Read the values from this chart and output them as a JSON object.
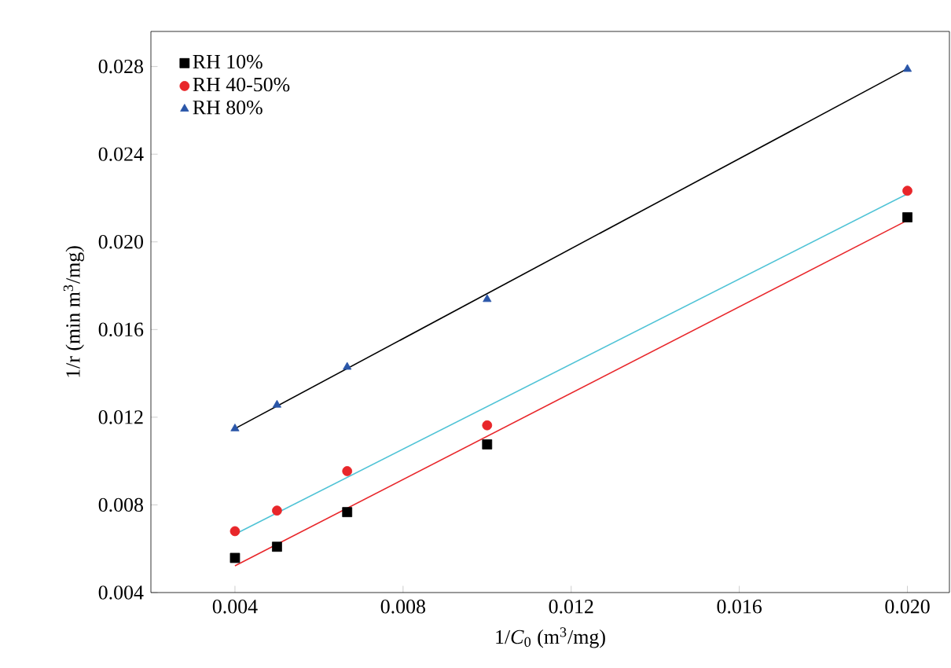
{
  "chart_data": {
    "type": "scatter",
    "xlabel": "1/*C*$_{0}$ (m$^{3}$/mg)",
    "ylabel": "1/r (min m$^{3}$/mg)",
    "xlim": [
      0.002,
      0.021
    ],
    "ylim": [
      0.004,
      0.0296
    ],
    "xticks": [
      {
        "value": 0.004,
        "label": "0.004"
      },
      {
        "value": 0.008,
        "label": "0.008"
      },
      {
        "value": 0.012,
        "label": "0.012"
      },
      {
        "value": 0.016,
        "label": "0.016"
      },
      {
        "value": 0.02,
        "label": "0.020"
      }
    ],
    "yticks": [
      {
        "value": 0.004,
        "label": "0.004"
      },
      {
        "value": 0.008,
        "label": "0.008"
      },
      {
        "value": 0.012,
        "label": "0.012"
      },
      {
        "value": 0.016,
        "label": "0.016"
      },
      {
        "value": 0.02,
        "label": "0.020"
      },
      {
        "value": 0.024,
        "label": "0.024"
      },
      {
        "value": 0.028,
        "label": "0.028"
      }
    ],
    "legend": "top left",
    "grid": false,
    "series": [
      {
        "name": "RH 10%",
        "color": "#000000",
        "marker": "square",
        "x": [
          0.004,
          0.005,
          0.00667,
          0.01,
          0.02
        ],
        "values": [
          0.00558,
          0.00609,
          0.00767,
          0.01076,
          0.02112
        ]
      },
      {
        "name": "RH 40-50%",
        "color": "#e8262a",
        "marker": "circle",
        "x": [
          0.004,
          0.005,
          0.00667,
          0.01,
          0.02
        ],
        "values": [
          0.0068,
          0.00774,
          0.00954,
          0.01163,
          0.02233
        ]
      },
      {
        "name": "RH 80%",
        "color": "#2a56a8",
        "marker": "triangle",
        "x": [
          0.004,
          0.005,
          0.00667,
          0.01,
          0.02
        ],
        "values": [
          0.01148,
          0.01256,
          0.01429,
          0.01738,
          0.02788
        ]
      },
      {
        "type": "line",
        "color": "#000000",
        "marker": "none",
        "x": [
          0.004,
          0.02
        ],
        "values": [
          0.01148,
          0.0279
        ]
      },
      {
        "type": "line",
        "color": "#e8262a",
        "marker": "none",
        "x": [
          0.004,
          0.02
        ],
        "values": [
          0.00522,
          0.02098
        ]
      },
      {
        "type": "line",
        "color": "#4fc3d6",
        "marker": "none",
        "x": [
          0.004,
          0.02
        ],
        "values": [
          0.00666,
          0.02219
        ]
      }
    ]
  }
}
